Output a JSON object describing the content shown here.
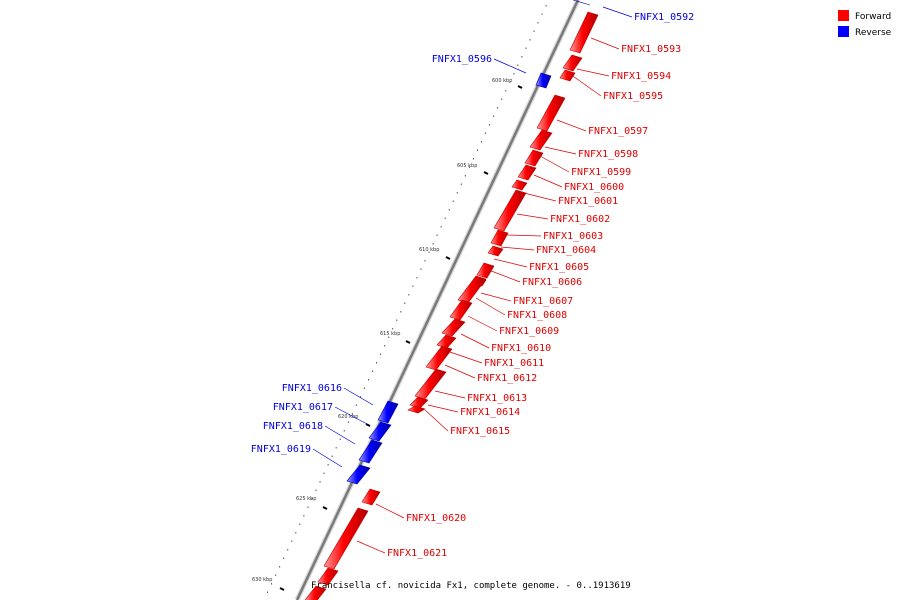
{
  "caption": "Francisella cf. novicida Fx1, complete genome. - 0..1913619",
  "legend": [
    {
      "label": "Forward",
      "color": "#ff0000"
    },
    {
      "label": "Reverse",
      "color": "#0000ff"
    }
  ],
  "colors": {
    "forward": "#ff0000",
    "forward_label": "#e00000",
    "reverse": "#0000ff",
    "reverse_label": "#0000e0",
    "backbone": "#7a7a7a"
  },
  "scale_ticks": [
    "600 kbp",
    "605 kbp",
    "610 kbp",
    "615 kbp",
    "620 kbp",
    "625 kbp",
    "630 kbp"
  ],
  "features": [
    {
      "id": "FNFX1_0592",
      "strand": "reverse"
    },
    {
      "id": "FNFX1_0593",
      "strand": "forward"
    },
    {
      "id": "FNFX1_0594",
      "strand": "forward"
    },
    {
      "id": "FNFX1_0595",
      "strand": "forward"
    },
    {
      "id": "FNFX1_0596",
      "strand": "reverse"
    },
    {
      "id": "FNFX1_0597",
      "strand": "forward"
    },
    {
      "id": "FNFX1_0598",
      "strand": "forward"
    },
    {
      "id": "FNFX1_0599",
      "strand": "forward"
    },
    {
      "id": "FNFX1_0600",
      "strand": "forward"
    },
    {
      "id": "FNFX1_0601",
      "strand": "forward"
    },
    {
      "id": "FNFX1_0602",
      "strand": "forward"
    },
    {
      "id": "FNFX1_0603",
      "strand": "forward"
    },
    {
      "id": "FNFX1_0604",
      "strand": "forward"
    },
    {
      "id": "FNFX1_0605",
      "strand": "forward"
    },
    {
      "id": "FNFX1_0606",
      "strand": "forward"
    },
    {
      "id": "FNFX1_0607",
      "strand": "forward"
    },
    {
      "id": "FNFX1_0608",
      "strand": "forward"
    },
    {
      "id": "FNFX1_0609",
      "strand": "forward"
    },
    {
      "id": "FNFX1_0610",
      "strand": "forward"
    },
    {
      "id": "FNFX1_0611",
      "strand": "forward"
    },
    {
      "id": "FNFX1_0612",
      "strand": "forward"
    },
    {
      "id": "FNFX1_0613",
      "strand": "forward"
    },
    {
      "id": "FNFX1_0614",
      "strand": "forward"
    },
    {
      "id": "FNFX1_0615",
      "strand": "forward"
    },
    {
      "id": "FNFX1_0616",
      "strand": "reverse"
    },
    {
      "id": "FNFX1_0617",
      "strand": "reverse"
    },
    {
      "id": "FNFX1_0618",
      "strand": "reverse"
    },
    {
      "id": "FNFX1_0619",
      "strand": "reverse"
    },
    {
      "id": "FNFX1_0620",
      "strand": "forward"
    },
    {
      "id": "FNFX1_0621",
      "strand": "forward"
    }
  ]
}
